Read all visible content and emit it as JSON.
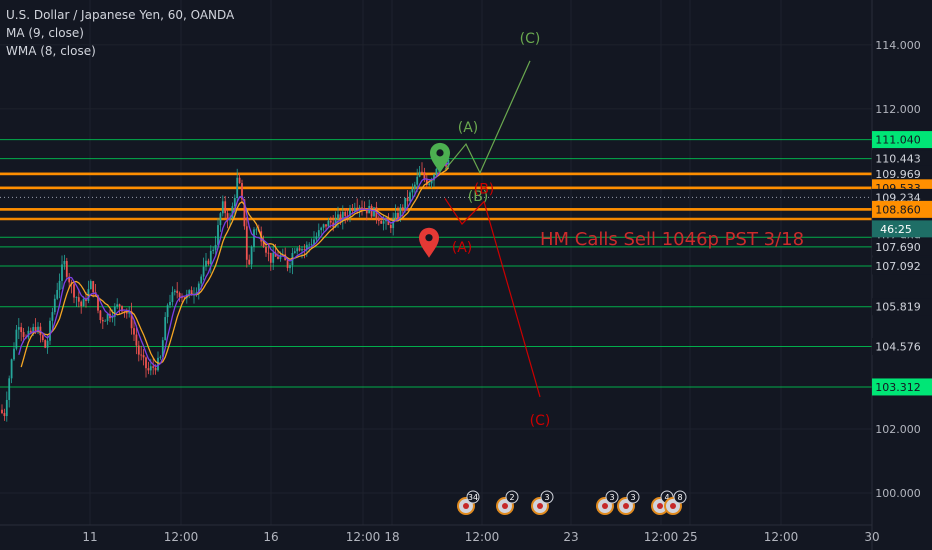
{
  "legend": {
    "symbol": "U.S. Dollar / Japanese Yen, 60, OANDA",
    "ma": "MA (9, close)",
    "wma": "WMA (8, close)"
  },
  "colors": {
    "background": "#131722",
    "grid": "#1e222d",
    "up": "#26a69a",
    "down": "#ef5350",
    "ma": "#f5a623",
    "wma": "#7b3fe4",
    "green_level": "#00c853",
    "orange_level": "#ff8f00",
    "green_wave": "#6aa84f",
    "red_wave": "#cc0000",
    "pin_green": "#4caf50",
    "pin_red": "#e53935"
  },
  "chart_data": {
    "type": "candlestick",
    "ylim": [
      99.0,
      115.4
    ],
    "y_ticks": [
      "114.000",
      "112.000",
      "102.000",
      "100.000"
    ],
    "x_ticks": [
      "11",
      "12:00",
      "16",
      "12:00",
      "18",
      "12:00",
      "23",
      "12:00",
      "25",
      "12:00",
      "30"
    ],
    "levels": [
      {
        "value": 111.04,
        "label": "111.040",
        "color": "green",
        "tag": "green"
      },
      {
        "value": 110.443,
        "label": "110.443",
        "color": "green",
        "tag": "dark"
      },
      {
        "value": 109.969,
        "label": "109.969",
        "color": "orange",
        "tag": "dark"
      },
      {
        "value": 109.533,
        "label": "109.533",
        "color": "orange",
        "tag": "orange"
      },
      {
        "value": 109.234,
        "label": "109.234",
        "color": "none",
        "tag": "dark"
      },
      {
        "value": 108.86,
        "label": "108.860",
        "color": "orange",
        "tag": "orange"
      },
      {
        "value": 107.989,
        "label": "107.989",
        "color": "green",
        "tag": "dark"
      },
      {
        "value": 107.69,
        "label": "107.690",
        "color": "green",
        "tag": "dark"
      },
      {
        "value": 107.092,
        "label": "107.092",
        "color": "green",
        "tag": "dark"
      },
      {
        "value": 105.819,
        "label": "105.819",
        "color": "green",
        "tag": "dark"
      },
      {
        "value": 104.576,
        "label": "104.576",
        "color": "green",
        "tag": "dark"
      },
      {
        "value": 103.312,
        "label": "103.312",
        "color": "green",
        "tag": "green"
      }
    ],
    "orange_bands": [
      109.969,
      109.533,
      108.86,
      108.56
    ],
    "current_price": 109.234,
    "countdown": {
      "value": 108.25,
      "label": "46:25"
    },
    "price_path": [
      [
        0,
        102.6
      ],
      [
        4,
        102.4
      ],
      [
        10,
        103.8
      ],
      [
        18,
        105.4
      ],
      [
        26,
        104.8
      ],
      [
        36,
        105.2
      ],
      [
        46,
        104.5
      ],
      [
        56,
        106.3
      ],
      [
        64,
        107.2
      ],
      [
        72,
        106.4
      ],
      [
        82,
        105.8
      ],
      [
        92,
        106.6
      ],
      [
        100,
        105.4
      ],
      [
        110,
        105.6
      ],
      [
        120,
        105.9
      ],
      [
        130,
        105.5
      ],
      [
        138,
        104.4
      ],
      [
        148,
        103.8
      ],
      [
        160,
        104.1
      ],
      [
        168,
        106.0
      ],
      [
        178,
        106.3
      ],
      [
        186,
        106.1
      ],
      [
        196,
        106.4
      ],
      [
        206,
        107.1
      ],
      [
        216,
        107.9
      ],
      [
        222,
        109.0
      ],
      [
        230,
        108.5
      ],
      [
        238,
        109.9
      ],
      [
        244,
        108.6
      ],
      [
        248,
        106.8
      ],
      [
        254,
        108.3
      ],
      [
        262,
        108.0
      ],
      [
        270,
        107.3
      ],
      [
        280,
        107.4
      ],
      [
        288,
        107.1
      ],
      [
        296,
        107.8
      ],
      [
        304,
        107.6
      ],
      [
        316,
        108.0
      ],
      [
        326,
        108.4
      ],
      [
        336,
        108.5
      ],
      [
        346,
        108.7
      ],
      [
        356,
        109.1
      ],
      [
        364,
        108.9
      ],
      [
        372,
        108.8
      ],
      [
        380,
        108.6
      ],
      [
        388,
        108.3
      ],
      [
        396,
        108.6
      ],
      [
        404,
        109.0
      ],
      [
        412,
        109.4
      ],
      [
        420,
        110.0
      ],
      [
        428,
        109.7
      ],
      [
        434,
        110.0
      ],
      [
        440,
        110.6
      ],
      [
        446,
        110.2
      ],
      [
        450,
        110.3
      ]
    ],
    "wave_green": {
      "points": [
        [
          445,
          110.1
        ],
        [
          466,
          110.9
        ],
        [
          480,
          110.0
        ],
        [
          530,
          113.5
        ]
      ],
      "labels": [
        "(A)",
        "(B)",
        "(C)"
      ]
    },
    "wave_red": {
      "points": [
        [
          445,
          109.2
        ],
        [
          462,
          108.4
        ],
        [
          484,
          109.1
        ],
        [
          540,
          103.0
        ]
      ],
      "labels": [
        "(A)",
        "(B)",
        "(C)"
      ]
    },
    "annotation": "HM Calls Sell 1046p PST 3/18",
    "events": [
      "34",
      "2",
      "3",
      "3",
      "3",
      "4",
      "8"
    ]
  }
}
